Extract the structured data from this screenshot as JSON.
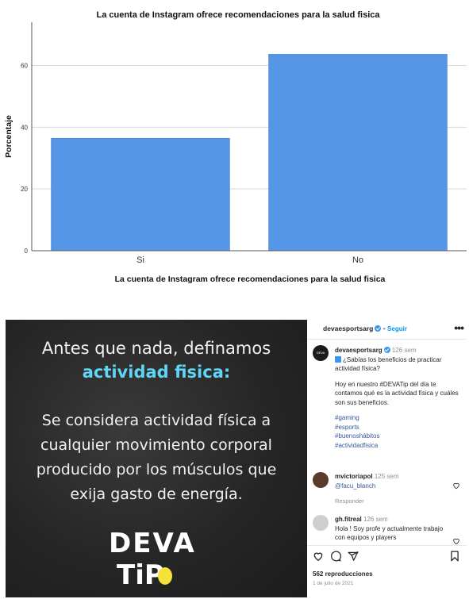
{
  "chart_data": {
    "type": "bar",
    "title": "La cuenta de Instagram ofrece recomendaciones para la salud fisica",
    "xlabel": "La cuenta de Instagram ofrece recomendaciones para la salud fisica",
    "ylabel": "Porcentaje",
    "categories": [
      "Si",
      "No"
    ],
    "values": [
      36.4,
      63.6
    ],
    "ylim": [
      0,
      74
    ],
    "yticks": [
      "0",
      "20",
      "40",
      "60"
    ],
    "grid": true,
    "bar_color": "#5596e6"
  },
  "post": {
    "slide": {
      "line1": "Antes que nada, definamos",
      "line2": "actividad fisica:",
      "body1": "Se considera actividad física a",
      "body2": "cualquier movimiento corporal",
      "body3": "producido por los músculos que",
      "body4": "exija gasto de energía.",
      "logo1": "DEVA",
      "logo2": "TiP"
    },
    "header": {
      "username": "devaesportsarg",
      "separator": "•",
      "follow": "Seguir",
      "more": "•••"
    },
    "caption": {
      "avatar_text": "DEVA",
      "username": "devaesportsarg",
      "time": "126 sem",
      "line1": "¿Sabías los beneficios de practicar actividad física?",
      "line2": "Hoy en nuestro #DEVATip del día te contamos qué es la actividad física y cuáles son sus beneficios.",
      "tags": [
        "#gaming",
        "#esports",
        "#buenoshábitos",
        "#actividadfisica"
      ]
    },
    "comments": [
      {
        "username": "mvictoriapol",
        "time": "125 sem",
        "text": "@facu_blanch",
        "reply": "Responder"
      },
      {
        "username": "gh.fitreal",
        "time": "126 sem",
        "text": "Hola ! Soy profe y actualmente trabajo con equipos y players"
      }
    ],
    "stats": {
      "views": "562 reproducciones",
      "date": "1 de julio de 2021"
    }
  }
}
